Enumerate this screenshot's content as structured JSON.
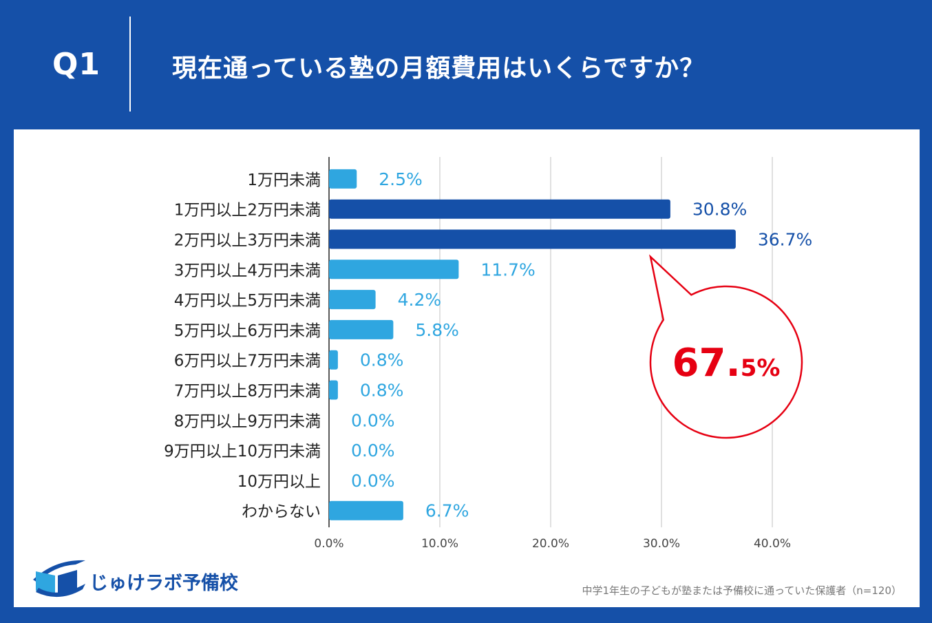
{
  "header": {
    "q_label": "Q1",
    "title": "現在通っている塾の月額費用はいくらですか？"
  },
  "chart_data": {
    "type": "bar",
    "orientation": "horizontal",
    "categories": [
      "1万円未満",
      "1万円以上2万円未満",
      "2万円以上3万円未満",
      "3万円以上4万円未満",
      "4万円以上5万円未満",
      "5万円以上6万円未満",
      "6万円以上7万円未満",
      "7万円以上8万円未満",
      "8万円以上9万円未満",
      "9万円以上10万円未満",
      "10万円以上",
      "わからない"
    ],
    "values": [
      2.5,
      30.8,
      36.7,
      11.7,
      4.2,
      5.8,
      0.8,
      0.8,
      0.0,
      0.0,
      0.0,
      6.7
    ],
    "value_labels": [
      "2.5%",
      "30.8%",
      "36.7%",
      "11.7%",
      "4.2%",
      "5.8%",
      "0.8%",
      "0.8%",
      "0.0%",
      "0.0%",
      "0.0%",
      "6.7%"
    ],
    "highlighted": [
      false,
      true,
      true,
      false,
      false,
      false,
      false,
      false,
      false,
      false,
      false,
      false
    ],
    "xlim": [
      0,
      40
    ],
    "x_ticks": [
      "0.0%",
      "10.0%",
      "20.0%",
      "30.0%",
      "40.0%"
    ],
    "grid": true,
    "title": "",
    "xlabel": "",
    "ylabel": "",
    "colors": {
      "normal": "#2fa6e0",
      "highlight": "#1550a8",
      "callout": "#e60012"
    },
    "annotation": {
      "value_main": "67.",
      "value_small": "5%",
      "description": "callout bubble pointing to highlighted bars"
    }
  },
  "branding": {
    "logo_text": "じゅけラボ予備校",
    "logo_icon": "book-icon"
  },
  "footnote": "中学1年生の子どもが塾または予備校に通っていた保護者（n=120）"
}
